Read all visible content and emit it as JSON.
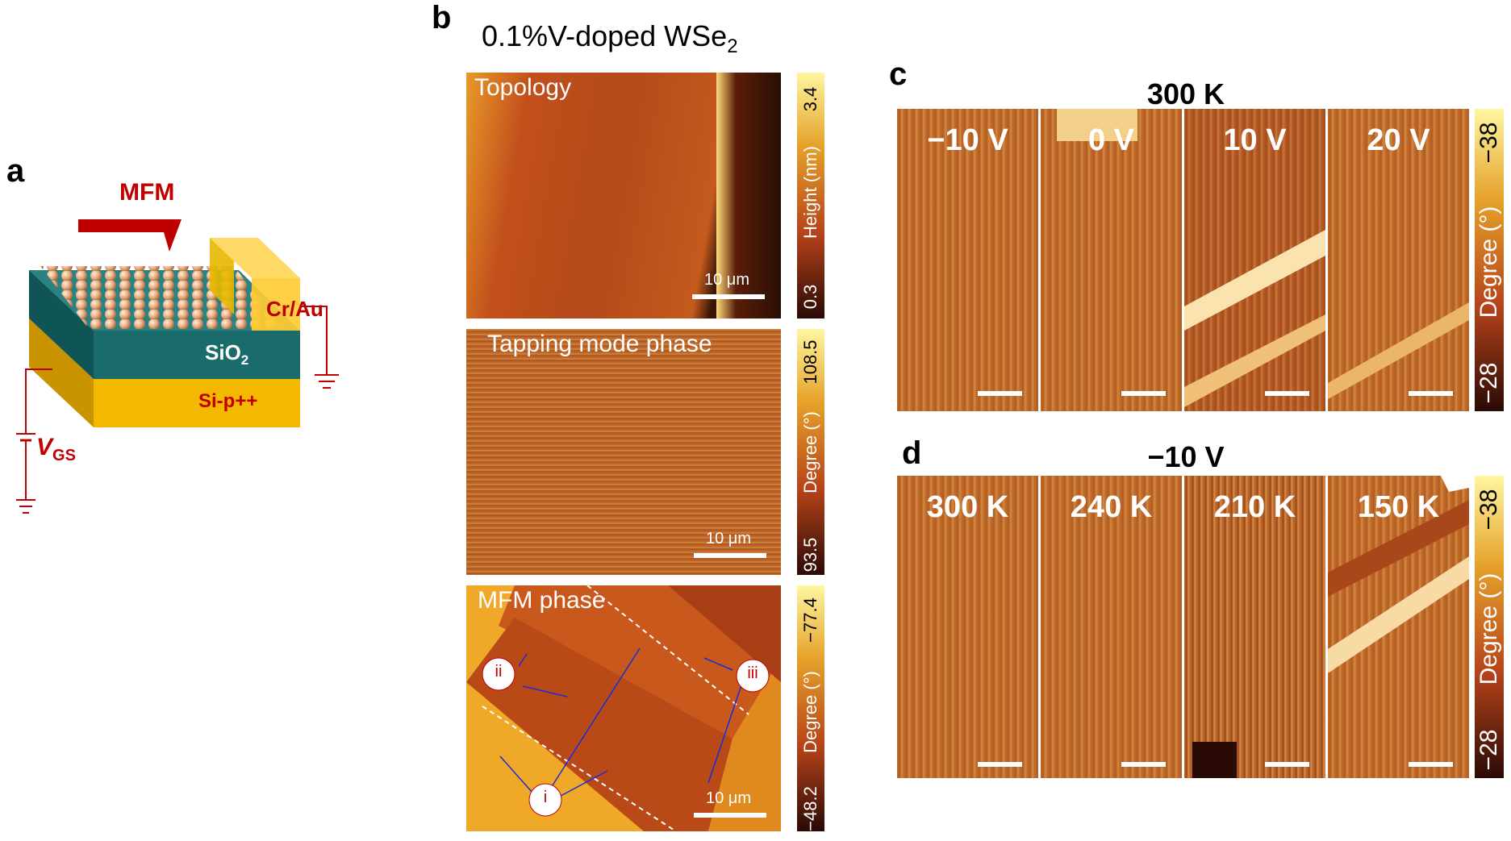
{
  "panel_a": {
    "letter": "a",
    "mfm_label": "MFM",
    "crau_label": "Cr/Au",
    "sio2_label": "SiO",
    "sio2_sub": "2",
    "sip_label": "Si-p++",
    "vgs_label": "V",
    "vgs_sub": "GS",
    "colors": {
      "red": "#c00000",
      "teal": "#1a6b6b",
      "gold": "#f5b800",
      "atom": "#e3a676"
    }
  },
  "panel_b": {
    "letter": "b",
    "title": "0.1%V-doped WSe",
    "title_sub": "2",
    "images": [
      {
        "label": "Topology",
        "scale": "10 μm",
        "cb_top": "3.4",
        "cb_bottom": "0.3",
        "cb_unit": "Height (nm)"
      },
      {
        "label": "Tapping mode phase",
        "scale": "10 μm",
        "cb_top": "108.5",
        "cb_bottom": "93.5",
        "cb_unit": "Degree (°)"
      },
      {
        "label": "MFM phase",
        "scale": "10 μm",
        "cb_top": "−77.4",
        "cb_bottom": "−48.2",
        "cb_unit": "Degree (°)"
      }
    ],
    "markers": [
      "ii",
      "iii",
      "i"
    ]
  },
  "panel_c": {
    "letter": "c",
    "title": "300 K",
    "tiles": [
      "−10 V",
      "0 V",
      "10 V",
      "20 V"
    ],
    "cb_top": "−38",
    "cb_bottom": "−28",
    "cb_unit": "Degree (°)"
  },
  "panel_d": {
    "letter": "d",
    "title": "−10 V",
    "tiles": [
      "300 K",
      "240 K",
      "210 K",
      "150 K"
    ],
    "cb_top": "−38",
    "cb_bottom": "−28",
    "cb_unit": "Degree (°)"
  }
}
